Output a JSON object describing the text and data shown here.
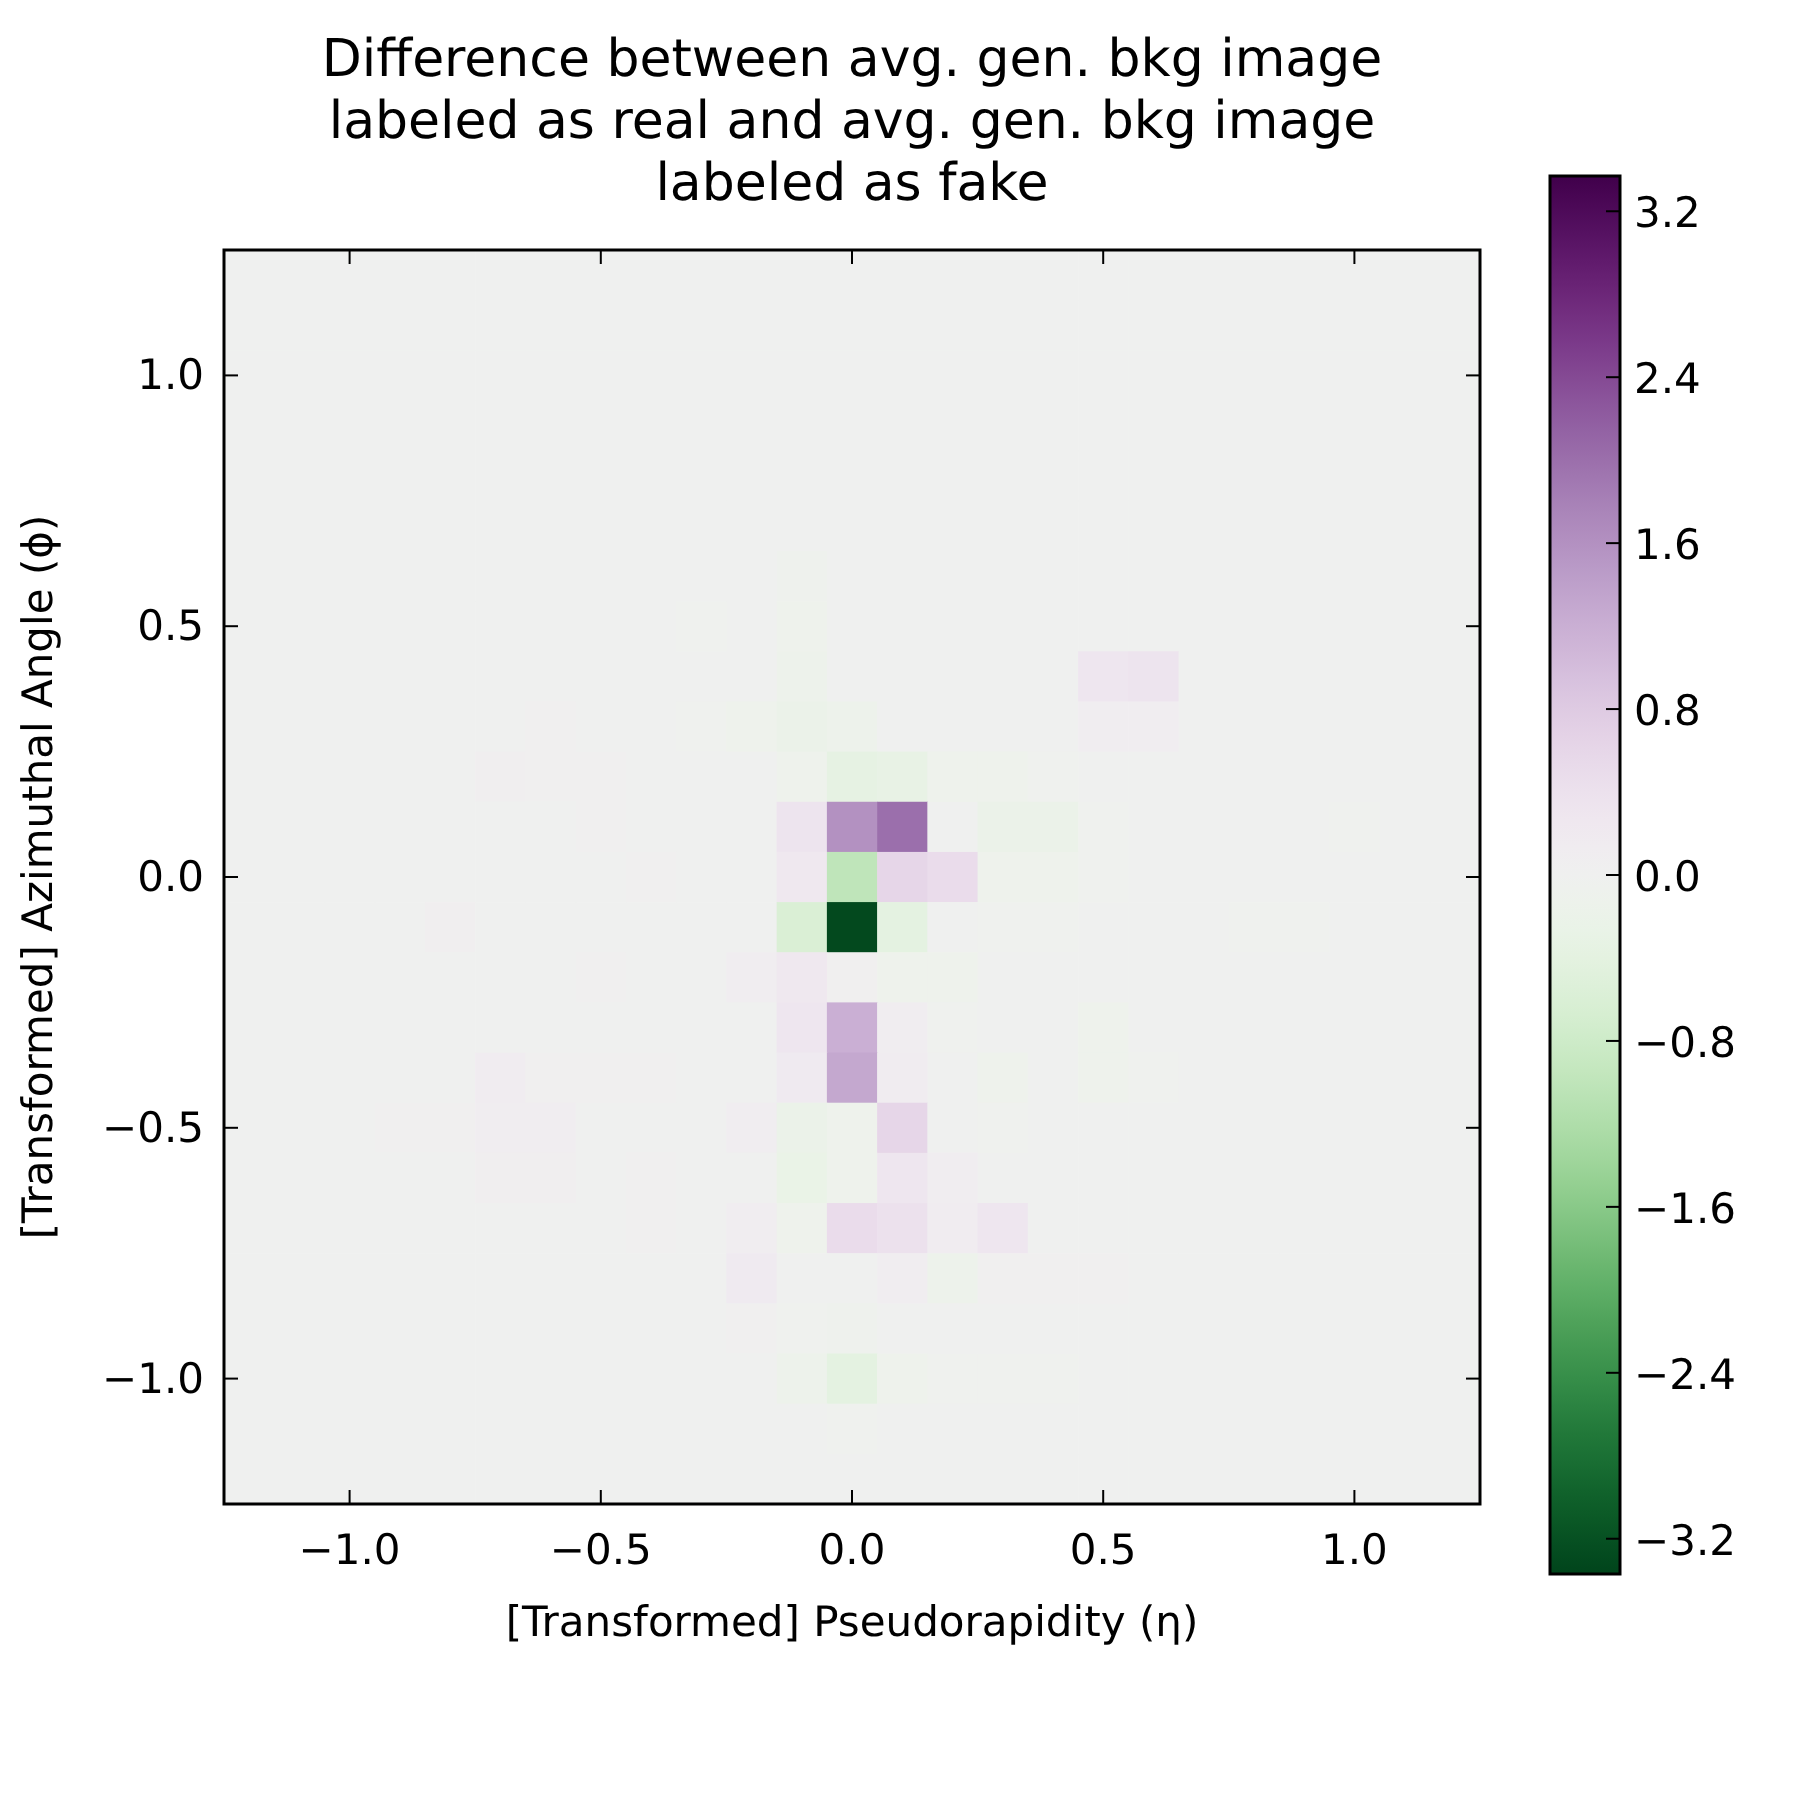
{
  "chart_data": {
    "type": "heatmap",
    "title": "Difference between avg. gen. bkg image\nlabeled as real and avg. gen. bkg image\nlabeled as fake",
    "xlabel": "[Transformed] Pseudorapidity (η)",
    "ylabel": "[Transformed] Azimuthal Angle (ϕ)",
    "xlim": [
      -1.25,
      1.25
    ],
    "ylim": [
      -1.25,
      1.25
    ],
    "xticks": [
      {
        "value": -1,
        "label": "−1.0"
      },
      {
        "value": -0.5,
        "label": "−0.5"
      },
      {
        "value": 0,
        "label": "0.0"
      },
      {
        "value": 0.5,
        "label": "0.5"
      },
      {
        "value": 1,
        "label": "1.0"
      }
    ],
    "yticks": [
      {
        "value": -1,
        "label": "−1.0"
      },
      {
        "value": -0.5,
        "label": "−0.5"
      },
      {
        "value": 0,
        "label": "0.0"
      },
      {
        "value": 0.5,
        "label": "0.5"
      },
      {
        "value": 1,
        "label": "1.0"
      }
    ],
    "clim": [
      -3.37,
      3.37
    ],
    "cticks": [
      {
        "value": -3.2,
        "label": "−3.2"
      },
      {
        "value": -2.4,
        "label": "−2.4"
      },
      {
        "value": -1.6,
        "label": "−1.6"
      },
      {
        "value": -0.8,
        "label": "−0.8"
      },
      {
        "value": 0,
        "label": "0.0"
      },
      {
        "value": 0.8,
        "label": "0.8"
      },
      {
        "value": 1.6,
        "label": "1.6"
      },
      {
        "value": 2.4,
        "label": "2.4"
      },
      {
        "value": 3.2,
        "label": "3.2"
      }
    ],
    "cells": [
      [
        0,
        0,
        0,
        0,
        0,
        0,
        0,
        0,
        0,
        0,
        0,
        0,
        0,
        0,
        0,
        0,
        0,
        0,
        0,
        0,
        0,
        0,
        0,
        0,
        0
      ],
      [
        0,
        0,
        0,
        0,
        0,
        0,
        0,
        0,
        0,
        0,
        0,
        0,
        0,
        0,
        0,
        0,
        0,
        0,
        0,
        0,
        0,
        0,
        0,
        0,
        0
      ],
      [
        0,
        0,
        0,
        0,
        0,
        0,
        0,
        0,
        0,
        0,
        0,
        0,
        0,
        0,
        0,
        0,
        0,
        0,
        0,
        0,
        0,
        0,
        0,
        0,
        0
      ],
      [
        0,
        0,
        0,
        0,
        0,
        0,
        0,
        0,
        0,
        0,
        0,
        0,
        0,
        0,
        0,
        0,
        0,
        0,
        0,
        0,
        0,
        0,
        0,
        0,
        0
      ],
      [
        0,
        0,
        0,
        0,
        0,
        0,
        0,
        0,
        0,
        0,
        0,
        0,
        0,
        0,
        0,
        0,
        0,
        0,
        0,
        0,
        0,
        0,
        0,
        0,
        0
      ],
      [
        0,
        0,
        0,
        0,
        0,
        0,
        0,
        0,
        0,
        0,
        0,
        0,
        0,
        0,
        0,
        0,
        0,
        0,
        0,
        0,
        0,
        0,
        0,
        0,
        0
      ],
      [
        0,
        0,
        0,
        0,
        0,
        0,
        0,
        0,
        0,
        0,
        0,
        -0.08,
        0,
        0,
        0,
        0,
        0,
        0,
        0,
        0,
        0,
        0,
        0,
        0,
        0
      ],
      [
        0,
        0,
        0,
        0,
        0,
        0,
        0,
        0,
        0,
        -0.03,
        0,
        -0.1,
        0,
        0,
        0,
        0,
        0,
        0,
        0,
        0,
        0,
        0,
        0,
        0,
        0
      ],
      [
        0,
        0,
        0,
        0,
        0,
        0,
        0,
        0,
        0,
        0,
        0,
        -0.15,
        0,
        0,
        0,
        0,
        0,
        0.3,
        0.35,
        0,
        0,
        0,
        0,
        0,
        0
      ],
      [
        0,
        0,
        0,
        0,
        0,
        0,
        0.05,
        0,
        0,
        -0.03,
        -0.1,
        -0.2,
        -0.15,
        0,
        0,
        0,
        0,
        0.1,
        0.1,
        0,
        0,
        0,
        0,
        0,
        0
      ],
      [
        0,
        0,
        0,
        0,
        0,
        0.07,
        0.05,
        0.05,
        0,
        0,
        0,
        -0.1,
        -0.35,
        -0.3,
        -0.1,
        -0.1,
        -0.05,
        0,
        0,
        0,
        0,
        0,
        0,
        0,
        0
      ],
      [
        0,
        0,
        0,
        0,
        0,
        0,
        0,
        0.05,
        0,
        0,
        0,
        0.35,
        1.6,
        2.0,
        0,
        -0.2,
        -0.2,
        -0.05,
        0,
        0,
        0,
        0,
        -0.03,
        0,
        0
      ],
      [
        0,
        0,
        0,
        0,
        0,
        0,
        0,
        0,
        0.04,
        0,
        0,
        0.25,
        -1.0,
        0.6,
        0.5,
        -0.1,
        -0.1,
        -0.05,
        0,
        0,
        0,
        0,
        0,
        0,
        0
      ],
      [
        0,
        0,
        0,
        0,
        0.07,
        0,
        0,
        0,
        0,
        0,
        0,
        -0.6,
        -3.3,
        -0.4,
        0,
        -0.03,
        -0.03,
        0,
        0,
        0,
        -0.03,
        -0.03,
        0,
        0,
        0
      ],
      [
        0,
        0,
        0,
        0,
        0,
        0,
        0,
        0.05,
        0,
        0,
        0.1,
        0.25,
        0.05,
        -0.1,
        -0.1,
        0,
        0,
        0,
        0,
        0,
        0,
        0,
        0,
        0,
        0
      ],
      [
        0,
        0,
        0,
        0,
        0,
        0,
        0,
        0,
        0,
        0,
        0,
        0.3,
        1.2,
        0.1,
        -0.05,
        0,
        0,
        -0.1,
        0,
        0,
        0,
        0,
        0,
        0,
        0
      ],
      [
        0,
        0,
        0,
        0,
        0,
        0.15,
        0.05,
        0.05,
        0.05,
        0,
        0,
        0.2,
        1.3,
        0.15,
        0,
        -0.1,
        0,
        -0.1,
        -0.05,
        0,
        0,
        0,
        0,
        0,
        0
      ],
      [
        0,
        0,
        0,
        0.05,
        0.05,
        0.1,
        0.1,
        0,
        0,
        0,
        0.1,
        -0.2,
        -0.1,
        0.6,
        0,
        -0.05,
        0,
        0,
        0,
        0,
        0,
        0,
        0,
        0,
        0
      ],
      [
        0,
        0,
        0,
        0,
        0,
        0.07,
        0.07,
        0,
        0.05,
        0,
        0,
        -0.25,
        -0.1,
        0.3,
        0.1,
        0,
        0,
        0,
        0,
        0,
        0,
        0,
        0,
        0,
        0
      ],
      [
        0,
        0,
        0,
        0,
        0,
        0,
        0,
        0,
        0.05,
        0,
        0.1,
        -0.1,
        0.5,
        0.4,
        0.15,
        0.3,
        0,
        0,
        0,
        0,
        0,
        0,
        0,
        0,
        0
      ],
      [
        0,
        0,
        0,
        0,
        0,
        0,
        0,
        0,
        0,
        0,
        0.2,
        0,
        0,
        0.1,
        -0.15,
        0.05,
        0.05,
        0.05,
        0,
        0,
        0,
        0,
        0,
        0,
        0
      ],
      [
        0,
        0,
        0,
        0,
        0,
        0,
        0,
        0,
        0,
        0,
        0.05,
        -0.03,
        -0.08,
        0,
        0,
        0,
        0,
        0,
        0,
        0,
        0,
        0,
        0,
        0,
        0
      ],
      [
        0,
        0,
        0,
        0,
        0,
        0,
        0,
        0,
        0,
        0,
        0,
        -0.15,
        -0.4,
        -0.1,
        -0.03,
        -0.03,
        -0.03,
        0,
        0,
        0,
        0,
        0,
        0,
        0,
        0
      ],
      [
        0,
        0,
        0,
        0,
        0,
        0,
        0,
        0,
        0,
        0,
        0,
        0,
        -0.05,
        0,
        0,
        0,
        0,
        0,
        0,
        0,
        0,
        0,
        0,
        0,
        0
      ],
      [
        0,
        0,
        0,
        0,
        0,
        0,
        0,
        0,
        0,
        0,
        0,
        0,
        0,
        0,
        0,
        0,
        0,
        0,
        0,
        0,
        0,
        0,
        0,
        0,
        0
      ]
    ]
  }
}
